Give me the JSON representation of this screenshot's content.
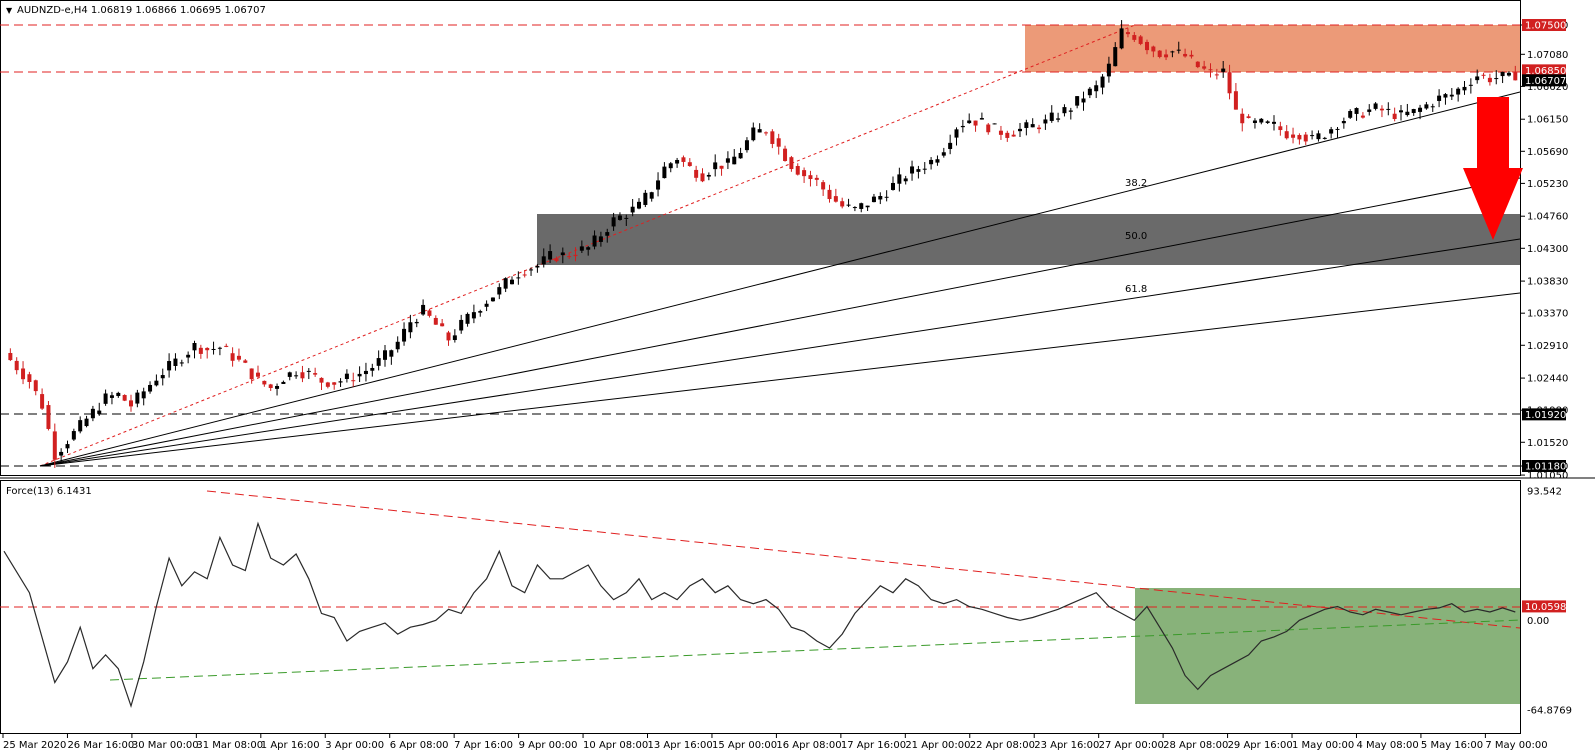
{
  "header": {
    "symbol_line": "AUDNZD-e,H4  1.06819 1.06866 1.06695 1.06707",
    "indicator_line": "Force(13) 6.1431"
  },
  "colors": {
    "bull_candle": "#000000",
    "bear_candle": "#d12020",
    "resistance_zone": "#ec9a78",
    "support_zone": "#6a6a6a",
    "oscillator_zone": "#88b27a",
    "red_line": "#e02020",
    "green_line": "#3a9a2a",
    "arrow": "#ff0000"
  },
  "chart_data": [
    {
      "type": "candlestick",
      "symbol": "AUDNZD-e",
      "timeframe": "H4",
      "ohlc_last": {
        "open": 1.06819,
        "high": 1.06866,
        "low": 1.06695,
        "close": 1.06707
      },
      "ylim": [
        1.01,
        1.077
      ],
      "y_ticks": [
        "1.07500",
        "1.07080",
        "1.06620",
        "1.06150",
        "1.05690",
        "1.05230",
        "1.04760",
        "1.04300",
        "1.03830",
        "1.03370",
        "1.02910",
        "1.02440",
        "1.01980",
        "1.01520",
        "1.01180",
        "1.01050"
      ],
      "x_ticks": [
        "25 Mar 2020",
        "26 Mar 16:00",
        "30 Mar 00:00",
        "31 Mar 08:00",
        "1 Apr 16:00",
        "3 Apr 00:00",
        "6 Apr 08:00",
        "7 Apr 16:00",
        "9 Apr 00:00",
        "10 Apr 08:00",
        "13 Apr 16:00",
        "15 Apr 00:00",
        "16 Apr 08:00",
        "17 Apr 16:00",
        "21 Apr 00:00",
        "22 Apr 08:00",
        "23 Apr 16:00",
        "27 Apr 00:00",
        "28 Apr 08:00",
        "29 Apr 16:00",
        "1 May 00:00",
        "4 May 08:00",
        "5 May 16:00",
        "7 May 00:00"
      ],
      "price_labels": [
        {
          "value": "1.07500",
          "style": "red"
        },
        {
          "value": "1.06850",
          "style": "red"
        },
        {
          "value": "1.06707",
          "style": "black"
        },
        {
          "value": "1.01920",
          "style": "black"
        },
        {
          "value": "1.01180",
          "style": "black"
        }
      ],
      "horizontal_levels": [
        1.075,
        1.0685,
        1.0192,
        1.0118
      ],
      "zones": [
        {
          "name": "resistance",
          "from": 1.0685,
          "to": 1.075
        },
        {
          "name": "support",
          "from": 1.041,
          "to": 1.0478
        }
      ],
      "fib_labels": [
        "38.2",
        "50.0",
        "61.8"
      ],
      "close_path": [
        [
          0,
          1.028
        ],
        [
          2,
          1.026
        ],
        [
          4,
          1.024
        ],
        [
          6,
          1.0205
        ],
        [
          8,
          1.0135
        ],
        [
          10,
          1.0155
        ],
        [
          12,
          1.0175
        ],
        [
          14,
          1.0195
        ],
        [
          16,
          1.0215
        ],
        [
          18,
          1.022
        ],
        [
          20,
          1.0205
        ],
        [
          22,
          1.0225
        ],
        [
          24,
          1.0245
        ],
        [
          26,
          1.026
        ],
        [
          28,
          1.0275
        ],
        [
          30,
          1.029
        ],
        [
          32,
          1.0285
        ],
        [
          34,
          1.0288
        ],
        [
          36,
          1.0275
        ],
        [
          38,
          1.026
        ],
        [
          40,
          1.024
        ],
        [
          42,
          1.023
        ],
        [
          44,
          1.0245
        ],
        [
          46,
          1.0255
        ],
        [
          48,
          1.025
        ],
        [
          50,
          1.024
        ],
        [
          52,
          1.0238
        ],
        [
          54,
          1.0243
        ],
        [
          56,
          1.025
        ],
        [
          58,
          1.026
        ],
        [
          60,
          1.0275
        ],
        [
          62,
          1.0295
        ],
        [
          64,
          1.0325
        ],
        [
          66,
          1.034
        ],
        [
          68,
          1.032
        ],
        [
          70,
          1.03
        ],
        [
          72,
          1.032
        ],
        [
          74,
          1.034
        ],
        [
          76,
          1.0355
        ],
        [
          78,
          1.037
        ],
        [
          80,
          1.039
        ],
        [
          82,
          1.04
        ],
        [
          84,
          1.0405
        ],
        [
          86,
          1.0418
        ],
        [
          88,
          1.042
        ],
        [
          90,
          1.0425
        ],
        [
          92,
          1.043
        ],
        [
          94,
          1.045
        ],
        [
          96,
          1.047
        ],
        [
          98,
          1.048
        ],
        [
          100,
          1.049
        ],
        [
          102,
          1.0515
        ],
        [
          104,
          1.0545
        ],
        [
          106,
          1.056
        ],
        [
          108,
          1.0545
        ],
        [
          110,
          1.0535
        ],
        [
          112,
          1.055
        ],
        [
          114,
          1.055
        ],
        [
          116,
          1.057
        ],
        [
          118,
          1.0595
        ],
        [
          120,
          1.06
        ],
        [
          122,
          1.0575
        ],
        [
          124,
          1.055
        ],
        [
          126,
          1.0535
        ],
        [
          128,
          1.0525
        ],
        [
          130,
          1.0505
        ],
        [
          132,
          1.049
        ],
        [
          134,
          1.0485
        ],
        [
          136,
          1.0495
        ],
        [
          138,
          1.0505
        ],
        [
          140,
          1.052
        ],
        [
          142,
          1.0535
        ],
        [
          144,
          1.0545
        ],
        [
          146,
          1.0555
        ],
        [
          148,
          1.0575
        ],
        [
          150,
          1.0605
        ],
        [
          152,
          1.0615
        ],
        [
          154,
          1.061
        ],
        [
          156,
          1.06
        ],
        [
          158,
          1.0595
        ],
        [
          160,
          1.06
        ],
        [
          162,
          1.0605
        ],
        [
          164,
          1.061
        ],
        [
          166,
          1.0622
        ],
        [
          168,
          1.0632
        ],
        [
          170,
          1.0648
        ],
        [
          172,
          1.066
        ],
        [
          174,
          1.069
        ],
        [
          176,
          1.074
        ],
        [
          178,
          1.0735
        ],
        [
          180,
          1.072
        ],
        [
          182,
          1.071
        ],
        [
          184,
          1.0712
        ],
        [
          186,
          1.0705
        ],
        [
          188,
          1.069
        ],
        [
          190,
          1.068
        ],
        [
          192,
          1.0683
        ],
        [
          194,
          1.0625
        ],
        [
          196,
          1.0608
        ],
        [
          198,
          1.0608
        ],
        [
          200,
          1.0605
        ],
        [
          202,
          1.0595
        ],
        [
          204,
          1.0595
        ],
        [
          206,
          1.0585
        ],
        [
          208,
          1.0595
        ],
        [
          210,
          1.061
        ],
        [
          212,
          1.062
        ],
        [
          214,
          1.0625
        ],
        [
          216,
          1.063
        ],
        [
          218,
          1.0625
        ],
        [
          220,
          1.062
        ],
        [
          222,
          1.0625
        ],
        [
          224,
          1.0635
        ],
        [
          226,
          1.0645
        ],
        [
          228,
          1.065
        ],
        [
          230,
          1.0665
        ],
        [
          232,
          1.0678
        ],
        [
          234,
          1.0674
        ],
        [
          236,
          1.0675
        ],
        [
          238,
          1.0671
        ]
      ]
    },
    {
      "type": "line",
      "name": "Force(13) 6.1431",
      "ylim": [
        -64.8769,
        93.542
      ],
      "y_ticks": [
        "93.542",
        "0.00",
        "-64.8769"
      ],
      "price_labels": [
        {
          "value": "10.0598",
          "style": "red"
        }
      ],
      "horizontal_levels": [
        10.0598
      ],
      "points": [
        [
          0,
          50
        ],
        [
          4,
          20
        ],
        [
          8,
          -45
        ],
        [
          10,
          -30
        ],
        [
          12,
          -5
        ],
        [
          14,
          -35
        ],
        [
          16,
          -25
        ],
        [
          18,
          -35
        ],
        [
          20,
          -62
        ],
        [
          22,
          -30
        ],
        [
          24,
          10
        ],
        [
          26,
          45
        ],
        [
          28,
          25
        ],
        [
          30,
          35
        ],
        [
          32,
          30
        ],
        [
          34,
          60
        ],
        [
          36,
          40
        ],
        [
          38,
          36
        ],
        [
          40,
          70
        ],
        [
          42,
          45
        ],
        [
          44,
          40
        ],
        [
          46,
          48
        ],
        [
          48,
          30
        ],
        [
          50,
          5
        ],
        [
          52,
          2
        ],
        [
          54,
          -15
        ],
        [
          56,
          -8
        ],
        [
          58,
          -5
        ],
        [
          60,
          -2
        ],
        [
          62,
          -10
        ],
        [
          64,
          -5
        ],
        [
          66,
          -3
        ],
        [
          68,
          0
        ],
        [
          70,
          8
        ],
        [
          72,
          5
        ],
        [
          74,
          20
        ],
        [
          76,
          30
        ],
        [
          78,
          50
        ],
        [
          80,
          25
        ],
        [
          82,
          20
        ],
        [
          84,
          40
        ],
        [
          86,
          30
        ],
        [
          88,
          30
        ],
        [
          90,
          35
        ],
        [
          92,
          40
        ],
        [
          94,
          25
        ],
        [
          96,
          15
        ],
        [
          98,
          20
        ],
        [
          100,
          30
        ],
        [
          102,
          15
        ],
        [
          104,
          20
        ],
        [
          106,
          15
        ],
        [
          108,
          25
        ],
        [
          110,
          30
        ],
        [
          112,
          20
        ],
        [
          114,
          25
        ],
        [
          116,
          15
        ],
        [
          118,
          12
        ],
        [
          120,
          15
        ],
        [
          122,
          8
        ],
        [
          124,
          -5
        ],
        [
          126,
          -8
        ],
        [
          128,
          -15
        ],
        [
          130,
          -20
        ],
        [
          132,
          -10
        ],
        [
          134,
          5
        ],
        [
          136,
          15
        ],
        [
          138,
          25
        ],
        [
          140,
          20
        ],
        [
          142,
          30
        ],
        [
          144,
          25
        ],
        [
          146,
          15
        ],
        [
          148,
          12
        ],
        [
          150,
          15
        ],
        [
          152,
          10
        ],
        [
          154,
          8
        ],
        [
          156,
          5
        ],
        [
          158,
          2
        ],
        [
          160,
          0
        ],
        [
          162,
          2
        ],
        [
          164,
          5
        ],
        [
          166,
          8
        ],
        [
          168,
          12
        ],
        [
          170,
          16
        ],
        [
          172,
          20
        ],
        [
          174,
          10
        ],
        [
          176,
          5
        ],
        [
          178,
          0
        ],
        [
          180,
          10
        ],
        [
          182,
          -5
        ],
        [
          184,
          -20
        ],
        [
          186,
          -40
        ],
        [
          188,
          -50
        ],
        [
          190,
          -40
        ],
        [
          192,
          -35
        ],
        [
          194,
          -30
        ],
        [
          196,
          -25
        ],
        [
          198,
          -15
        ],
        [
          200,
          -12
        ],
        [
          202,
          -8
        ],
        [
          204,
          0
        ],
        [
          206,
          4
        ],
        [
          208,
          8
        ],
        [
          210,
          10
        ],
        [
          212,
          6
        ],
        [
          214,
          4
        ],
        [
          216,
          8
        ],
        [
          218,
          6
        ],
        [
          220,
          4
        ],
        [
          222,
          6
        ],
        [
          224,
          8
        ],
        [
          226,
          9
        ],
        [
          228,
          12
        ],
        [
          230,
          6
        ],
        [
          232,
          8
        ],
        [
          234,
          6
        ],
        [
          236,
          9
        ],
        [
          238,
          6
        ]
      ]
    }
  ]
}
